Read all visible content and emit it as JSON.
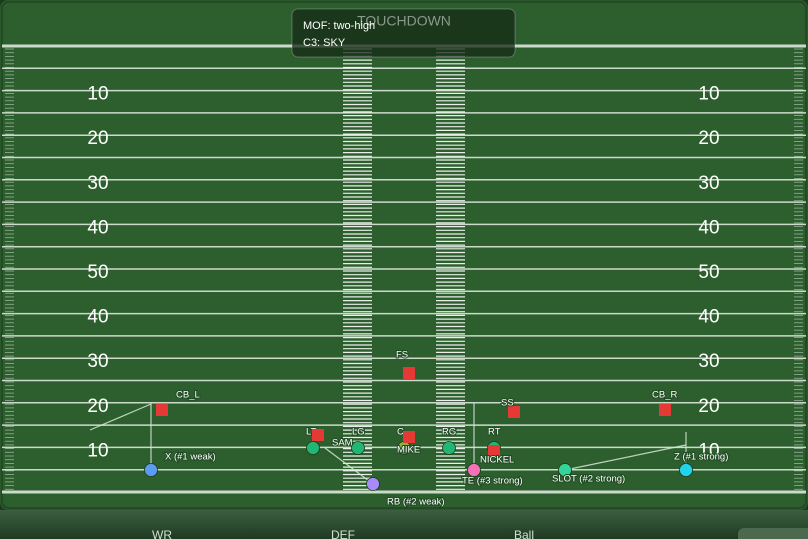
{
  "header": {
    "end_zone_label": "TOUCHDOWN"
  },
  "overlay": {
    "lines": [
      "MOF: two-high",
      "C3: SKY"
    ]
  },
  "field": {
    "yard_numbers": [
      10,
      20,
      30,
      40,
      50,
      40,
      30,
      20,
      10
    ]
  },
  "players": [
    {
      "label": "CB_L",
      "side": "defense",
      "color": "#e53935"
    },
    {
      "label": "X (#1 weak)",
      "side": "offense",
      "color": "#5b9cf0"
    },
    {
      "label": "LT",
      "side": "offense",
      "color": "#22b573"
    },
    {
      "label": "SAM",
      "side": "defense",
      "color": "#e53935"
    },
    {
      "label": "LG",
      "side": "offense",
      "color": "#22b573"
    },
    {
      "label": "C",
      "side": "offense",
      "color": "#8fb13a"
    },
    {
      "label": "MIKE",
      "side": "defense",
      "color": "#e53935"
    },
    {
      "label": "RG",
      "side": "offense",
      "color": "#22b573"
    },
    {
      "label": "RT",
      "side": "offense",
      "color": "#22b573"
    },
    {
      "label": "NICKEL",
      "side": "defense",
      "color": "#e53935"
    },
    {
      "label": "SS",
      "side": "defense",
      "color": "#e53935"
    },
    {
      "label": "FS",
      "side": "defense",
      "color": "#e53935"
    },
    {
      "label": "CB_R",
      "side": "defense",
      "color": "#e53935"
    },
    {
      "label": "RB (#2 weak)",
      "side": "offense",
      "color": "#a78bfa"
    },
    {
      "label": "TE (#3 strong)",
      "side": "offense",
      "color": "#f472b6"
    },
    {
      "label": "SLOT (#2 strong)",
      "side": "offense",
      "color": "#34d399"
    },
    {
      "label": "Z (#1 strong)",
      "side": "offense",
      "color": "#22d3ee"
    }
  ],
  "tabs": [
    "WR",
    "DEF",
    "Ball"
  ]
}
